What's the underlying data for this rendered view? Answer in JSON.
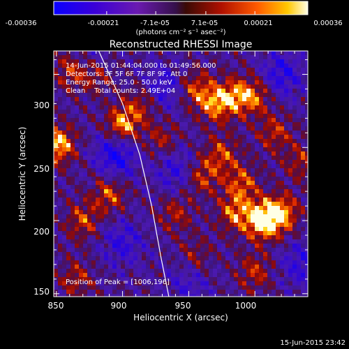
{
  "colorbar": {
    "tick_labels": [
      "-0.00036",
      "-0.00021",
      "-7.1e-05",
      "7.1e-05",
      "0.00021",
      "0.00036"
    ],
    "tick_values": [
      -0.00036,
      -0.00021,
      -7.1e-05,
      7.1e-05,
      0.00021,
      0.00036
    ],
    "range": [
      -0.00036,
      0.00036
    ],
    "unit_label": "(photons cm⁻² s⁻¹ asec⁻²)",
    "colormap": "rhessi-diverging"
  },
  "header": {
    "title": "Reconstructed RHESSI Image"
  },
  "info_lines": [
    "14-Jun-2015 01:44:04.000 to 01:49:56.000",
    "Detectors: 3F 5F 6F 7F 8F 9F, Att 0",
    "Energy Range: 25.0 - 50.0 keV",
    "Clean    Total counts: 2.49E+04"
  ],
  "peak_text": "Position of Peak = [1006,196]",
  "footer_timestamp": "15-Jun-2015 23:42",
  "chart_data": {
    "type": "heatmap",
    "title": "Reconstructed RHESSI Image",
    "xlabel": "Heliocentric X (arcsec)",
    "ylabel": "Heliocentric Y (arcsec)",
    "xlim": [
      848,
      1040
    ],
    "ylim": [
      148,
      316
    ],
    "x_ticks": [
      850,
      900,
      950,
      1000
    ],
    "y_ticks": [
      150,
      200,
      250,
      300
    ],
    "x_tick_labels": [
      "850",
      "900",
      "950",
      "1000"
    ],
    "y_tick_labels": [
      "150",
      "200",
      "250",
      "300"
    ],
    "peak": [
      1006,
      196
    ],
    "hot_spots": [
      {
        "x": 851,
        "y": 252,
        "level": 0.85
      },
      {
        "x": 862,
        "y": 303,
        "level": 0.55
      },
      {
        "x": 880,
        "y": 300,
        "level": 0.45
      },
      {
        "x": 900,
        "y": 265,
        "level": 0.8
      },
      {
        "x": 890,
        "y": 218,
        "level": 0.55
      },
      {
        "x": 915,
        "y": 280,
        "level": 0.45
      },
      {
        "x": 930,
        "y": 255,
        "level": 0.4
      },
      {
        "x": 955,
        "y": 290,
        "level": 0.5
      },
      {
        "x": 970,
        "y": 280,
        "level": 0.65
      },
      {
        "x": 985,
        "y": 285,
        "level": 0.6
      },
      {
        "x": 1000,
        "y": 285,
        "level": 0.55
      },
      {
        "x": 1015,
        "y": 260,
        "level": 0.45
      },
      {
        "x": 975,
        "y": 245,
        "level": 0.5
      },
      {
        "x": 960,
        "y": 230,
        "level": 0.5
      },
      {
        "x": 990,
        "y": 225,
        "level": 0.55
      },
      {
        "x": 1006,
        "y": 200,
        "level": 1.0
      },
      {
        "x": 1020,
        "y": 205,
        "level": 0.75
      },
      {
        "x": 985,
        "y": 205,
        "level": 0.6
      },
      {
        "x": 1000,
        "y": 165,
        "level": 0.45
      },
      {
        "x": 940,
        "y": 205,
        "level": 0.4
      },
      {
        "x": 955,
        "y": 175,
        "level": 0.35
      },
      {
        "x": 870,
        "y": 200,
        "level": 0.5
      },
      {
        "x": 865,
        "y": 160,
        "level": 0.4
      },
      {
        "x": 1035,
        "y": 240,
        "level": 0.4
      }
    ],
    "cold_spots": [
      {
        "x": 895,
        "y": 245,
        "level": 0.7
      },
      {
        "x": 930,
        "y": 290,
        "level": 0.5
      },
      {
        "x": 1020,
        "y": 300,
        "level": 0.55
      },
      {
        "x": 940,
        "y": 235,
        "level": 0.45
      },
      {
        "x": 950,
        "y": 158,
        "level": 0.35
      },
      {
        "x": 900,
        "y": 185,
        "level": 0.45
      },
      {
        "x": 1035,
        "y": 170,
        "level": 0.45
      },
      {
        "x": 875,
        "y": 310,
        "level": 0.35
      }
    ],
    "limb_curve": [
      [
        882,
        316
      ],
      [
        900,
        280
      ],
      [
        913,
        245
      ],
      [
        922,
        210
      ],
      [
        929,
        175
      ],
      [
        935,
        148
      ]
    ]
  }
}
